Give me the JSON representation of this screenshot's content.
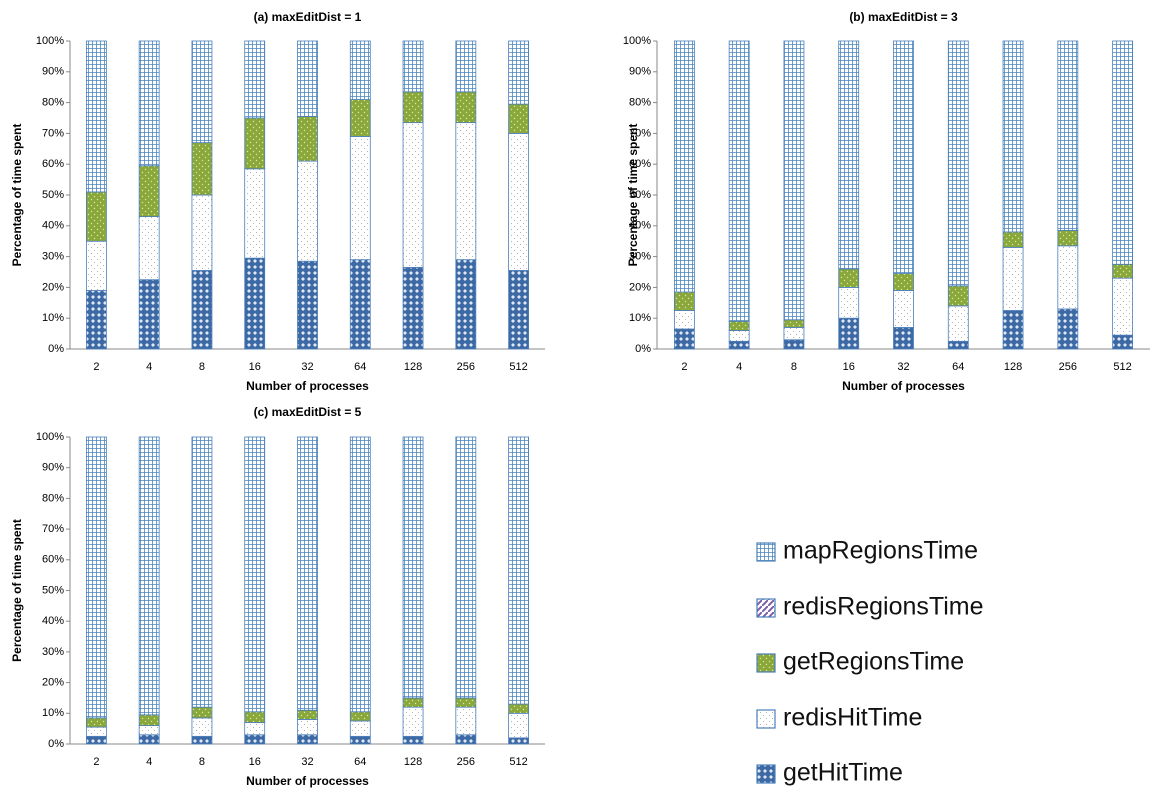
{
  "chart_data": [
    {
      "type": "bar",
      "stacked": true,
      "title": "(a) maxEditDist = 1",
      "xlabel": "Number of processes",
      "ylabel": "Percentage of time spent",
      "categories": [
        "2",
        "4",
        "8",
        "16",
        "32",
        "64",
        "128",
        "256",
        "512"
      ],
      "ylim": [
        0,
        100
      ],
      "yticks": [
        {
          "value": 0,
          "label": "0%"
        },
        {
          "value": 10,
          "label": "10%"
        },
        {
          "value": 20,
          "label": "20%"
        },
        {
          "value": 30,
          "label": "30%"
        },
        {
          "value": 40,
          "label": "40%"
        },
        {
          "value": 50,
          "label": "50%"
        },
        {
          "value": 60,
          "label": "60%"
        },
        {
          "value": 70,
          "label": "70%"
        },
        {
          "value": 80,
          "label": "80%"
        },
        {
          "value": 90,
          "label": "90%"
        },
        {
          "value": 100,
          "label": "100%"
        }
      ],
      "series": [
        {
          "name": "getHitTime",
          "color": "#3d6aa5",
          "values": [
            19,
            22.5,
            25.5,
            29.5,
            28.5,
            29,
            26.5,
            29,
            25.5
          ]
        },
        {
          "name": "redisHitTime",
          "color": "#9a9a9a",
          "values": [
            16,
            20.5,
            24.5,
            29,
            32.5,
            40,
            47,
            44.5,
            44.5
          ]
        },
        {
          "name": "getRegionsTime",
          "color": "#8aa83a",
          "values": [
            16,
            16.5,
            17,
            16.5,
            14.5,
            12,
            10,
            10,
            9.5
          ]
        },
        {
          "name": "redisRegionsTime",
          "color": "#7b5ea8",
          "values": [
            0,
            0,
            0,
            0,
            0,
            0,
            0,
            0,
            0
          ]
        },
        {
          "name": "mapRegionsTime",
          "color": "#4a86c0",
          "values": [
            49,
            40.5,
            33,
            25,
            24.5,
            19,
            16.5,
            16.5,
            20.5
          ]
        }
      ]
    },
    {
      "type": "bar",
      "stacked": true,
      "title": "(b) maxEditDist = 3",
      "xlabel": "Number of processes",
      "ylabel": "Percentage of time spent",
      "categories": [
        "2",
        "4",
        "8",
        "16",
        "32",
        "64",
        "128",
        "256",
        "512"
      ],
      "ylim": [
        0,
        100
      ],
      "yticks": [
        {
          "value": 0,
          "label": "0%"
        },
        {
          "value": 10,
          "label": "10%"
        },
        {
          "value": 20,
          "label": "20%"
        },
        {
          "value": 30,
          "label": "30%"
        },
        {
          "value": 40,
          "label": "40%"
        },
        {
          "value": 50,
          "label": "50%"
        },
        {
          "value": 60,
          "label": "60%"
        },
        {
          "value": 70,
          "label": "70%"
        },
        {
          "value": 80,
          "label": "80%"
        },
        {
          "value": 90,
          "label": "90%"
        },
        {
          "value": 100,
          "label": "100%"
        }
      ],
      "series": [
        {
          "name": "getHitTime",
          "color": "#3d6aa5",
          "values": [
            6.5,
            2.5,
            3,
            10,
            7,
            2.5,
            12.5,
            13,
            4.5
          ]
        },
        {
          "name": "redisHitTime",
          "color": "#9a9a9a",
          "values": [
            6,
            3.5,
            4,
            10,
            12,
            11.5,
            20.5,
            20.5,
            18.5
          ]
        },
        {
          "name": "getRegionsTime",
          "color": "#8aa83a",
          "values": [
            6,
            3,
            2.5,
            6,
            5.5,
            6.5,
            5,
            5,
            4.5
          ]
        },
        {
          "name": "redisRegionsTime",
          "color": "#7b5ea8",
          "values": [
            0,
            0,
            0,
            0,
            0,
            0,
            0,
            0,
            0
          ]
        },
        {
          "name": "mapRegionsTime",
          "color": "#4a86c0",
          "values": [
            81.5,
            91,
            90.5,
            74,
            75.5,
            79.5,
            62,
            61.5,
            72.5
          ]
        }
      ]
    },
    {
      "type": "bar",
      "stacked": true,
      "title": "(c) maxEditDist = 5",
      "xlabel": "Number of processes",
      "ylabel": "Percentage of time spent",
      "categories": [
        "2",
        "4",
        "8",
        "16",
        "32",
        "64",
        "128",
        "256",
        "512"
      ],
      "ylim": [
        0,
        100
      ],
      "yticks": [
        {
          "value": 0,
          "label": "0%"
        },
        {
          "value": 10,
          "label": "10%"
        },
        {
          "value": 20,
          "label": "20%"
        },
        {
          "value": 30,
          "label": "30%"
        },
        {
          "value": 40,
          "label": "40%"
        },
        {
          "value": 50,
          "label": "50%"
        },
        {
          "value": 60,
          "label": "60%"
        },
        {
          "value": 70,
          "label": "70%"
        },
        {
          "value": 80,
          "label": "80%"
        },
        {
          "value": 90,
          "label": "90%"
        },
        {
          "value": 100,
          "label": "100%"
        }
      ],
      "series": [
        {
          "name": "getHitTime",
          "color": "#3d6aa5",
          "values": [
            2.5,
            3,
            2.5,
            3,
            3,
            2.5,
            2.5,
            3,
            2
          ]
        },
        {
          "name": "redisHitTime",
          "color": "#9a9a9a",
          "values": [
            3,
            3,
            6,
            4,
            5,
            5,
            9.5,
            9,
            8
          ]
        },
        {
          "name": "getRegionsTime",
          "color": "#8aa83a",
          "values": [
            3,
            3.5,
            3.5,
            3.5,
            3,
            3,
            3,
            3,
            3
          ]
        },
        {
          "name": "redisRegionsTime",
          "color": "#7b5ea8",
          "values": [
            0,
            0,
            0,
            0,
            0,
            0,
            0,
            0,
            0
          ]
        },
        {
          "name": "mapRegionsTime",
          "color": "#4a86c0",
          "values": [
            91.5,
            90.5,
            88,
            89.5,
            89,
            89.5,
            85,
            85,
            87
          ]
        }
      ]
    }
  ]
}
